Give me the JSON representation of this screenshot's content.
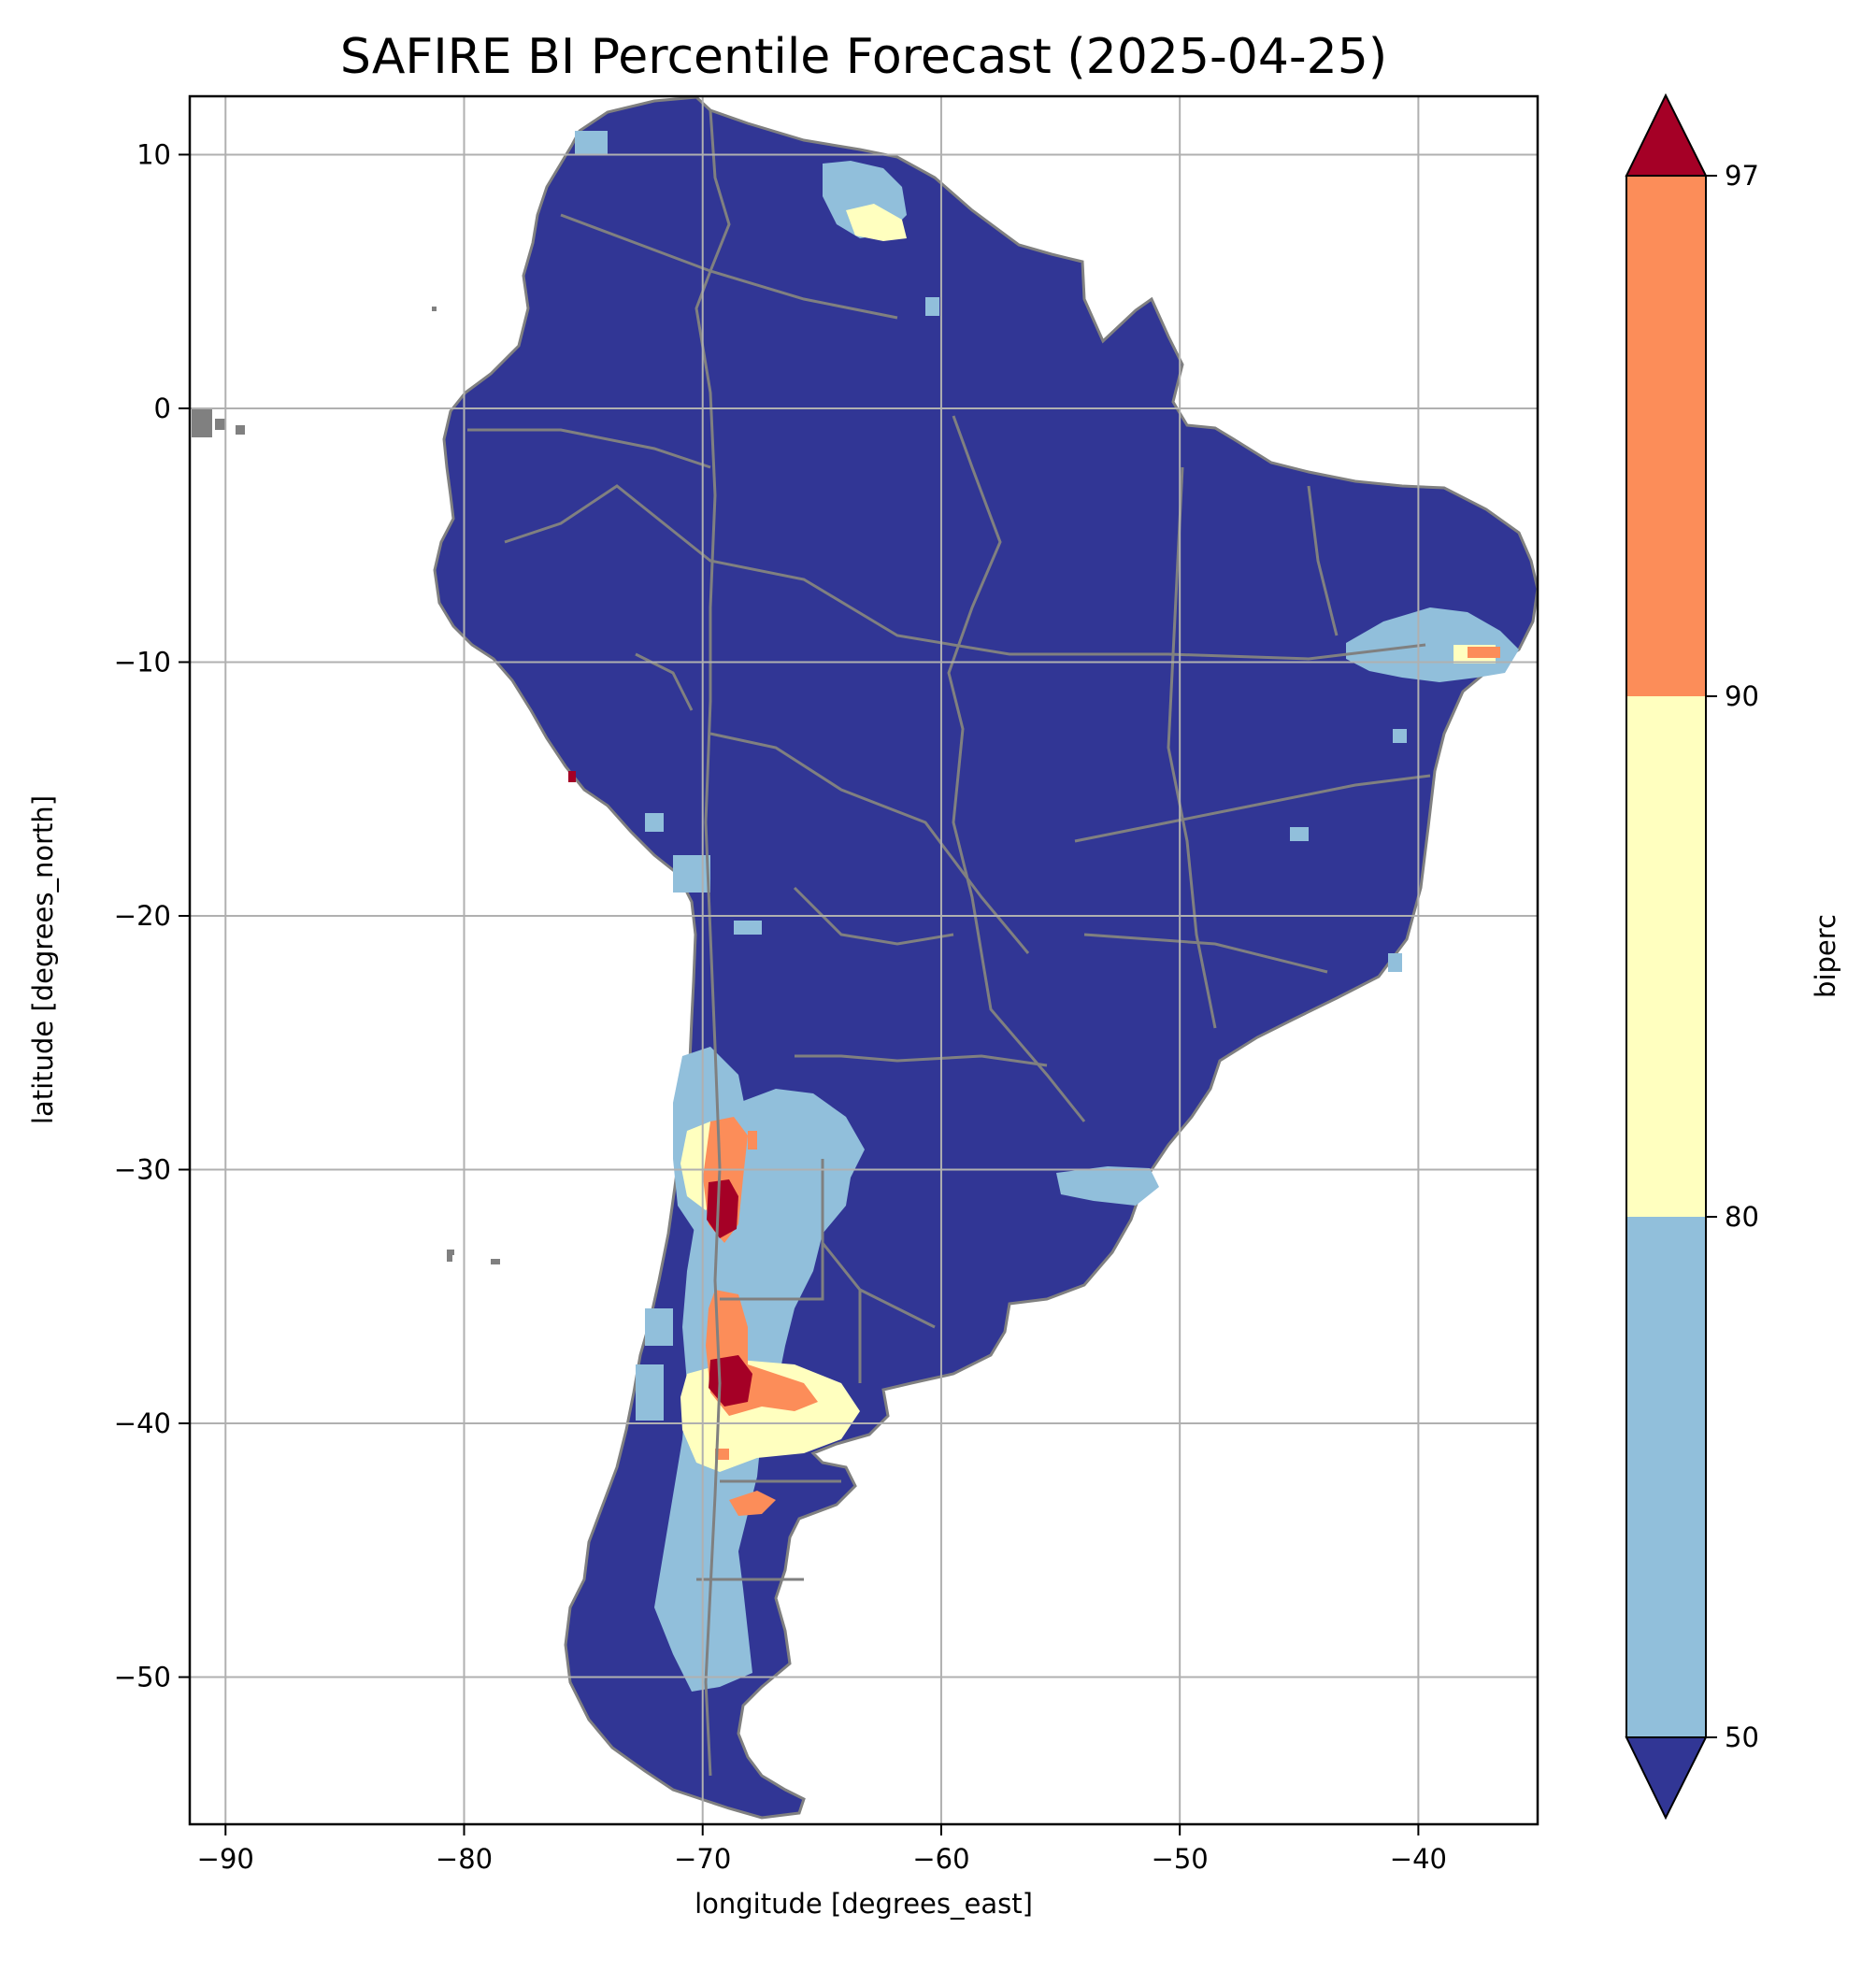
{
  "title": "SAFIRE BI Percentile Forecast (2025-04-25)",
  "xlabel": "longitude [degrees_east]",
  "ylabel": "latitude [degrees_north]",
  "x_ticks": [
    "−90",
    "−80",
    "−70",
    "−60",
    "−50",
    "−40"
  ],
  "y_ticks": [
    "10",
    "0",
    "−10",
    "−20",
    "−30",
    "−40",
    "−50"
  ],
  "colorbar": {
    "label": "biperc",
    "ticks": [
      "50",
      "80",
      "90",
      "97"
    ],
    "extend": "both",
    "bins": [
      {
        "range": "<50",
        "color": "#313695"
      },
      {
        "range": "50-80",
        "color": "#91bfdb"
      },
      {
        "range": "80-90",
        "color": "#ffffbf"
      },
      {
        "range": "90-97",
        "color": "#fc8d59"
      },
      {
        "range": ">97",
        "color": "#a50026"
      }
    ]
  },
  "chart_data": {
    "type": "heatmap",
    "title": "SAFIRE BI Percentile Forecast (2025-04-25)",
    "xlabel": "longitude [degrees_east]",
    "ylabel": "latitude [degrees_north]",
    "xlim": [
      -91.5,
      -35
    ],
    "ylim": [
      -55.8,
      12.3
    ],
    "x_ticks": [
      -90,
      -80,
      -70,
      -60,
      -50,
      -40
    ],
    "y_ticks": [
      10,
      0,
      -10,
      -20,
      -30,
      -40,
      -50
    ],
    "grid": true,
    "region": "South America",
    "colorbar_label": "biperc",
    "colorbar_levels": [
      50,
      80,
      90,
      97
    ],
    "dominant_category": "<50",
    "hotspots": [
      {
        "lon": -69.5,
        "lat": -32,
        "category": ">97"
      },
      {
        "lon": -69.5,
        "lat": -38.5,
        "category": ">97"
      },
      {
        "lon": -68.5,
        "lat": -37.5,
        "category": "90-97"
      },
      {
        "lon": -66.5,
        "lat": -40.5,
        "category": "80-90"
      },
      {
        "lon": -67,
        "lat": 8,
        "category": "80-90"
      },
      {
        "lon": -37.5,
        "lat": -9.8,
        "category": "90-97"
      },
      {
        "lon": -75.5,
        "lat": -14.3,
        "category": ">97"
      },
      {
        "lon": -68,
        "lat": -49,
        "category": "50-80"
      },
      {
        "lon": -49.5,
        "lat": -30.5,
        "category": "50-80"
      }
    ]
  },
  "colors": {
    "land_boundary": "#808080",
    "grid": "#b0b0b0"
  }
}
